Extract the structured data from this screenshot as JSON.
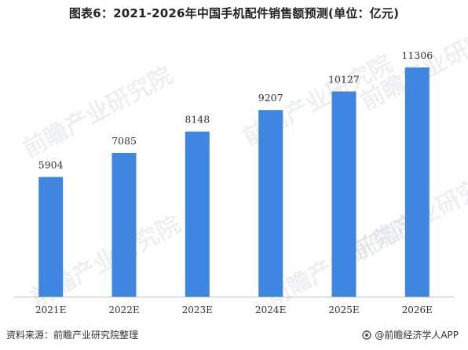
{
  "title": "图表6：2021-2026年中国手机配件销售额预测(单位：亿元)",
  "source": "资料来源：前瞻产业研究院整理",
  "brand": "@前瞻经济学人APP",
  "watermark_text": "前瞻产业研究院",
  "colors": {
    "bar": "#3f86e0",
    "axis": "#bfbfbf",
    "label": "#333333"
  },
  "chart_data": {
    "type": "bar",
    "title": "图表6：2021-2026年中国手机配件销售额预测(单位：亿元)",
    "categories": [
      "2021E",
      "2022E",
      "2023E",
      "2024E",
      "2025E",
      "2026E"
    ],
    "values": [
      5904,
      7085,
      8148,
      9207,
      10127,
      11306
    ],
    "xlabel": "",
    "ylabel": "",
    "ylim": [
      0,
      12000
    ],
    "grid": false,
    "legend": "none"
  }
}
